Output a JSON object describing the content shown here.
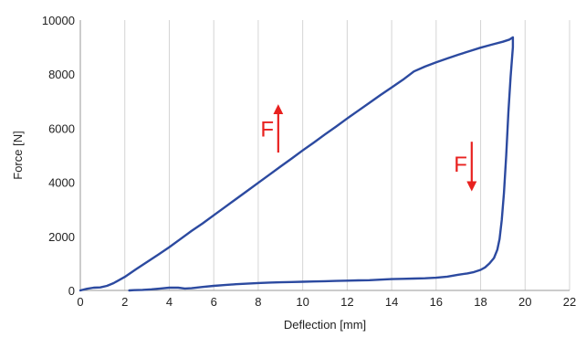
{
  "chart_data": {
    "type": "line",
    "title": "",
    "xlabel": "Deflection [mm]",
    "ylabel": "Force [N]",
    "xlim": [
      0,
      22
    ],
    "ylim": [
      0,
      10000
    ],
    "x_ticks": [
      0,
      2,
      4,
      6,
      8,
      10,
      12,
      14,
      16,
      18,
      20,
      22
    ],
    "y_ticks": [
      0,
      2000,
      4000,
      6000,
      8000,
      10000
    ],
    "grid": "vertical",
    "legend": "none",
    "line_color": "#2c4aa0",
    "annotation_color": "#e8211f",
    "series": [
      {
        "x": [
          0,
          0.3,
          0.6,
          0.9,
          1.2,
          1.5,
          2.0,
          2.5,
          3.0,
          3.5,
          4.0,
          4.5,
          5.0,
          5.5,
          6.0,
          6.5,
          7.0,
          7.5,
          8.0,
          8.5,
          9.0,
          9.5,
          10.0,
          10.5,
          11.0,
          11.5,
          12.0,
          12.5,
          13.0,
          13.5,
          14.0,
          14.5,
          15.0,
          15.5,
          16.0,
          16.5,
          17.0,
          17.5,
          18.0,
          18.5,
          19.0,
          19.3,
          19.45,
          19.45,
          19.35,
          19.25,
          19.15,
          19.05,
          18.95,
          18.85,
          18.75,
          18.6,
          18.4,
          18.2,
          18.0,
          17.7,
          17.4,
          17.0,
          16.5,
          16.0,
          15.5,
          15.0,
          14.5,
          14.0,
          13.5,
          13.0,
          12.5,
          12.0,
          11.5,
          11.0,
          10.5,
          10.0,
          9.5,
          9.0,
          8.5,
          8.0,
          7.5,
          7.0,
          6.5,
          6.0,
          5.5,
          5.0,
          4.7,
          4.4,
          4.0,
          3.6,
          3.2,
          2.8,
          2.4,
          2.2
        ],
        "y": [
          0,
          60,
          100,
          110,
          170,
          270,
          500,
          780,
          1050,
          1320,
          1600,
          1900,
          2200,
          2480,
          2780,
          3080,
          3380,
          3680,
          3980,
          4280,
          4580,
          4880,
          5180,
          5470,
          5770,
          6060,
          6360,
          6650,
          6940,
          7230,
          7510,
          7790,
          8100,
          8280,
          8440,
          8580,
          8720,
          8850,
          8980,
          9090,
          9200,
          9280,
          9360,
          9000,
          7900,
          6600,
          5000,
          3600,
          2600,
          1900,
          1500,
          1200,
          1000,
          850,
          760,
          680,
          630,
          580,
          510,
          470,
          450,
          440,
          430,
          420,
          400,
          380,
          370,
          360,
          350,
          340,
          330,
          320,
          310,
          300,
          290,
          275,
          250,
          230,
          200,
          170,
          130,
          80,
          70,
          100,
          100,
          70,
          40,
          20,
          10,
          0
        ]
      }
    ],
    "annotations": [
      {
        "text": "F",
        "x": 8.1,
        "y": 5700,
        "arrow": "up",
        "arrow_x": 8.9,
        "arrow_from": 5100,
        "arrow_to": 6700
      },
      {
        "text": "F",
        "x": 16.8,
        "y": 4400,
        "arrow": "down",
        "arrow_x": 17.6,
        "arrow_from": 5500,
        "arrow_to": 3850
      }
    ]
  }
}
